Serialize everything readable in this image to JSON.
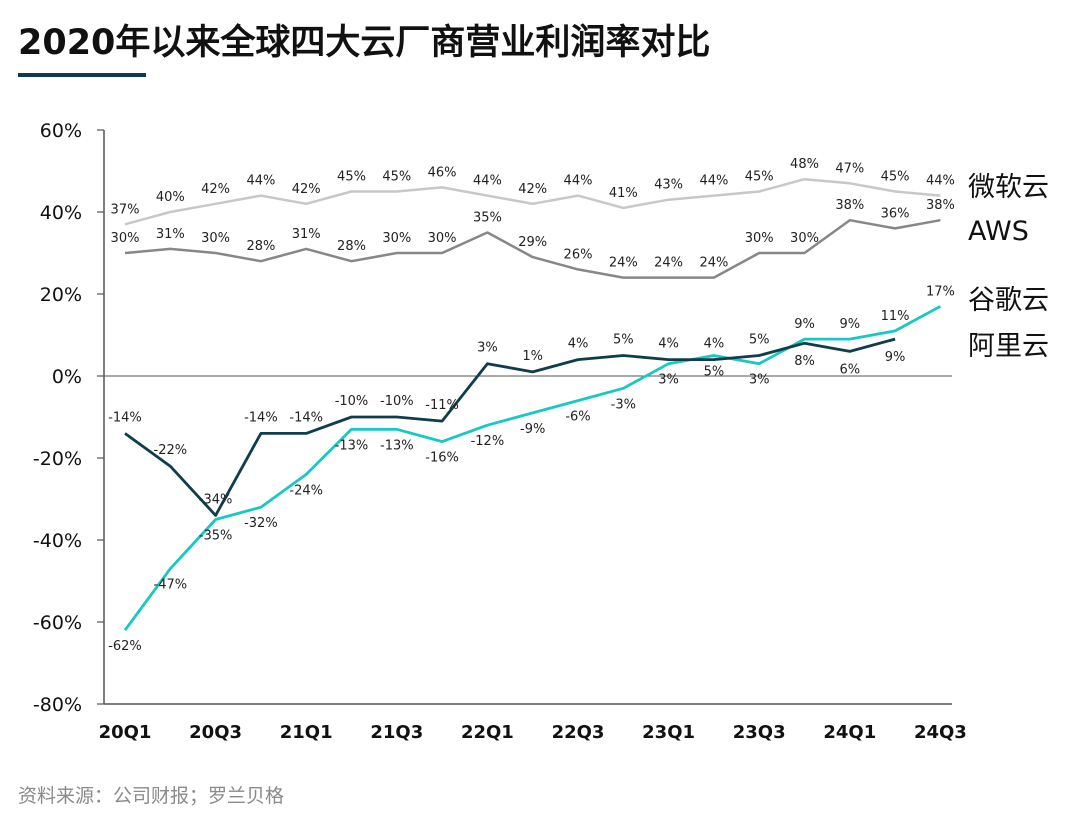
{
  "header": {
    "title": "2020年以来全球四大云厂商营业利润率对比"
  },
  "footer": {
    "source": "资料来源：公司财报；罗兰贝格"
  },
  "colors": {
    "microsoft": "#c8c8c8",
    "aws": "#878787",
    "google": "#17c9c0",
    "alibaba": "#0f3d4c",
    "axis": "#555555",
    "title_underline": "#0e3a4a"
  },
  "chart_data": {
    "type": "line",
    "title": "2020年以来全球四大云厂商营业利润率对比",
    "xlabel": "",
    "ylabel": "",
    "ylim": [
      -80,
      60
    ],
    "yticks": [
      -80,
      -60,
      -40,
      -20,
      0,
      20,
      40,
      60
    ],
    "ytick_labels": [
      "-80%",
      "-60%",
      "-40%",
      "-20%",
      "0%",
      "20%",
      "40%",
      "60%"
    ],
    "categories": [
      "20Q1",
      "20Q2",
      "20Q3",
      "20Q4",
      "21Q1",
      "21Q2",
      "21Q3",
      "21Q4",
      "22Q1",
      "22Q2",
      "22Q3",
      "22Q4",
      "23Q1",
      "23Q2",
      "23Q3",
      "23Q4",
      "24Q1",
      "24Q2",
      "24Q3"
    ],
    "xtick_labels": [
      "20Q1",
      "20Q3",
      "21Q1",
      "21Q3",
      "22Q1",
      "22Q3",
      "23Q1",
      "23Q3",
      "24Q1",
      "24Q3"
    ],
    "grid": false,
    "legend_placement": "right",
    "series": [
      {
        "name": "微软云",
        "color_key": "microsoft",
        "values": [
          37,
          40,
          42,
          44,
          42,
          45,
          45,
          46,
          44,
          42,
          44,
          41,
          43,
          44,
          45,
          48,
          47,
          45,
          44
        ]
      },
      {
        "name": "AWS",
        "color_key": "aws",
        "values": [
          30,
          31,
          30,
          28,
          31,
          28,
          30,
          30,
          35,
          29,
          26,
          24,
          24,
          24,
          30,
          30,
          38,
          36,
          38
        ]
      },
      {
        "name": "谷歌云",
        "color_key": "google",
        "values": [
          -62,
          -47,
          -35,
          -32,
          -24,
          -13,
          -13,
          -16,
          -12,
          -9,
          -6,
          -3,
          3,
          5,
          3,
          9,
          9,
          11,
          17
        ]
      },
      {
        "name": "阿里云",
        "color_key": "alibaba",
        "values": [
          -14,
          -22,
          -34,
          -14,
          -14,
          -10,
          -10,
          -11,
          3,
          1,
          4,
          5,
          4,
          4,
          5,
          8,
          6,
          9,
          null
        ]
      }
    ]
  }
}
